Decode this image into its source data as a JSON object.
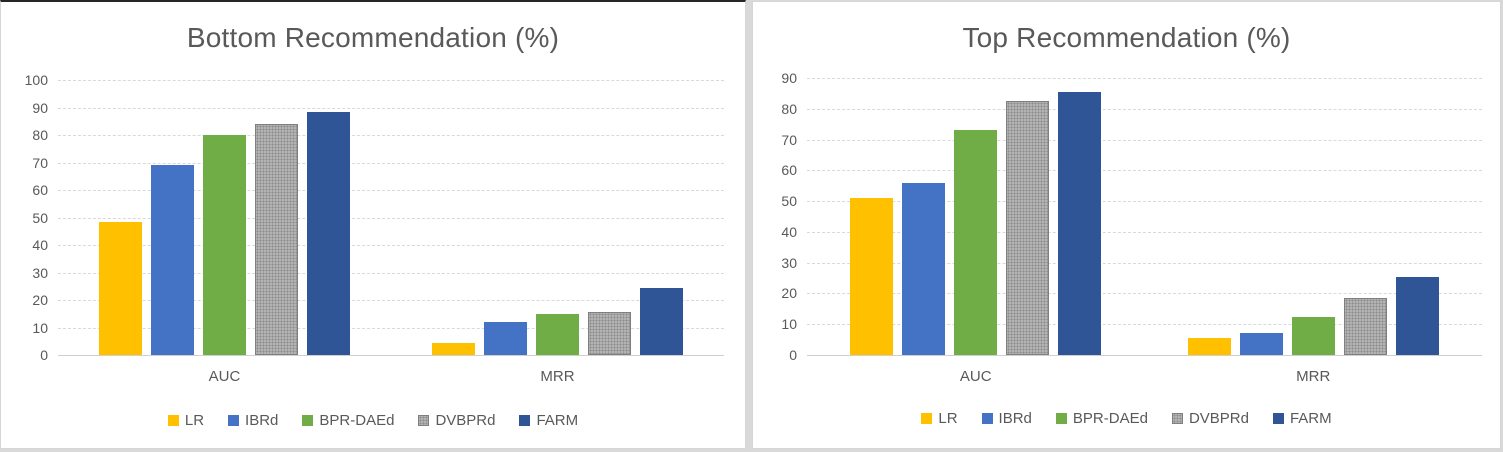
{
  "colors": {
    "background": "#d9d9d9",
    "panel": "#ffffff",
    "text": "#595959",
    "gridline": "#d9d9d9"
  },
  "chart_data": [
    {
      "type": "bar",
      "title": "Bottom Recommendation (%)",
      "categories": [
        "AUC",
        "MRR"
      ],
      "series": [
        {
          "name": "LR",
          "color": "#FFC000",
          "values": [
            48.5,
            4.5
          ]
        },
        {
          "name": "IBRd",
          "color": "#4472C4",
          "values": [
            69,
            12
          ]
        },
        {
          "name": "BPR-DAEd",
          "color": "#70AD47",
          "values": [
            80,
            15
          ]
        },
        {
          "name": "DVBPRd",
          "color": "#B3B3B3",
          "pattern": "speckle",
          "border_color": "#7F7F7F",
          "values": [
            84,
            15.5
          ]
        },
        {
          "name": "FARM",
          "color": "#2F5597",
          "values": [
            88.5,
            24.5
          ]
        }
      ],
      "ylim": [
        0,
        100
      ],
      "ytick_step": 10,
      "grid": true,
      "legend_position": "bottom"
    },
    {
      "type": "bar",
      "title": "Top Recommendation (%)",
      "categories": [
        "AUC",
        "MRR"
      ],
      "series": [
        {
          "name": "LR",
          "color": "#FFC000",
          "values": [
            51,
            5.5
          ]
        },
        {
          "name": "IBRd",
          "color": "#4472C4",
          "values": [
            56,
            7
          ]
        },
        {
          "name": "BPR-DAEd",
          "color": "#70AD47",
          "values": [
            73,
            12.5
          ]
        },
        {
          "name": "DVBPRd",
          "color": "#B3B3B3",
          "pattern": "speckle",
          "border_color": "#7F7F7F",
          "values": [
            82.5,
            18.5
          ]
        },
        {
          "name": "FARM",
          "color": "#2F5597",
          "values": [
            85.5,
            25.5
          ]
        }
      ],
      "ylim": [
        0,
        90
      ],
      "ytick_step": 10,
      "grid": true,
      "legend_position": "bottom"
    }
  ]
}
